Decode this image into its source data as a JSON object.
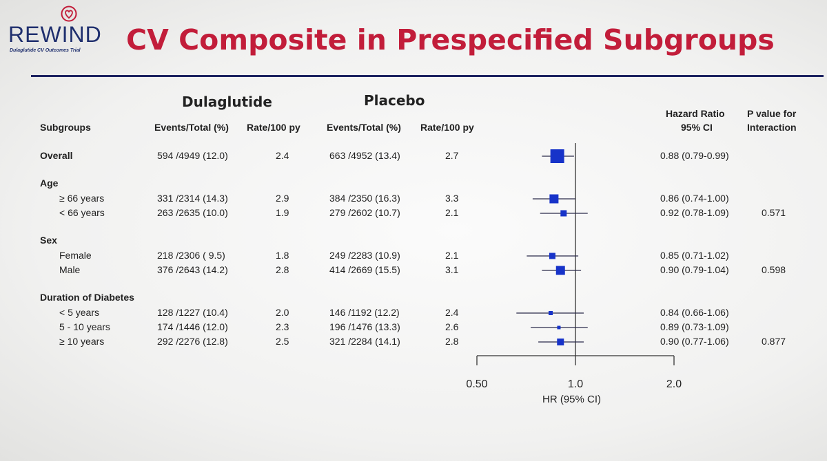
{
  "logo": {
    "name": "REWIND",
    "subtitle": "Dulaglutide CV Outcomes Trial"
  },
  "header": {
    "title": "CV Composite in Prespecified Subgroups"
  },
  "columns": {
    "subgroups": "Subgroups",
    "dula_group": "Dulaglutide",
    "plac_group": "Placebo",
    "events_total": "Events/Total (%)",
    "rate": "Rate/100 py",
    "hr_line1": "Hazard Ratio",
    "hr_line2": "95% CI",
    "p_line1": "P value for",
    "p_line2": "Interaction"
  },
  "rows": [
    {
      "label": "Overall",
      "bold": true,
      "d_events": "594 /4949 (12.0)",
      "d_rate": "2.4",
      "p_events": "663 /4952 (13.4)",
      "p_rate": "2.7",
      "hr_text": "0.88 (0.79-0.99)",
      "pval": "",
      "hr": 0.88,
      "lo": 0.79,
      "hi": 0.99,
      "size": 10
    },
    {
      "label": "Age",
      "bold": true,
      "header": true
    },
    {
      "label": "≥ 66 years",
      "d_events": "331 /2314 (14.3)",
      "d_rate": "2.9",
      "p_events": "384 /2350 (16.3)",
      "p_rate": "3.3",
      "hr_text": "0.86 (0.74-1.00)",
      "pval": "",
      "hr": 0.86,
      "lo": 0.74,
      "hi": 1.0,
      "size": 6.5
    },
    {
      "label": "< 66 years",
      "d_events": "263 /2635 (10.0)",
      "d_rate": "1.9",
      "p_events": "279 /2602 (10.7)",
      "p_rate": "2.1",
      "hr_text": "0.92 (0.78-1.09)",
      "pval": "0.571",
      "hr": 0.92,
      "lo": 0.78,
      "hi": 1.09,
      "size": 4.5
    },
    {
      "label": "Sex",
      "bold": true,
      "header": true
    },
    {
      "label": "Female",
      "d_events": "218 /2306 ( 9.5)",
      "d_rate": "1.8",
      "p_events": "249 /2283 (10.9)",
      "p_rate": "2.1",
      "hr_text": "0.85 (0.71-1.02)",
      "pval": "",
      "hr": 0.85,
      "lo": 0.71,
      "hi": 1.02,
      "size": 4.5
    },
    {
      "label": "Male",
      "d_events": "376 /2643 (14.2)",
      "d_rate": "2.8",
      "p_events": "414 /2669 (15.5)",
      "p_rate": "3.1",
      "hr_text": "0.90 (0.79-1.04)",
      "pval": "0.598",
      "hr": 0.9,
      "lo": 0.79,
      "hi": 1.04,
      "size": 6.5
    },
    {
      "label": "Duration of Diabetes",
      "bold": true,
      "header": true
    },
    {
      "label": "< 5 years",
      "d_events": "128 /1227 (10.4)",
      "d_rate": "2.0",
      "p_events": "146 /1192 (12.2)",
      "p_rate": "2.4",
      "hr_text": "0.84 (0.66-1.06)",
      "pval": "",
      "hr": 0.84,
      "lo": 0.66,
      "hi": 1.06,
      "size": 3
    },
    {
      "label": "5 - 10 years",
      "d_events": "174 /1446 (12.0)",
      "d_rate": "2.3",
      "p_events": "196 /1476 (13.3)",
      "p_rate": "2.6",
      "hr_text": "0.89 (0.73-1.09)",
      "pval": "",
      "hr": 0.89,
      "lo": 0.73,
      "hi": 1.09,
      "size": 2.5
    },
    {
      "label": "≥ 10 years",
      "d_events": "292 /2276 (12.8)",
      "d_rate": "2.5",
      "p_events": "321 /2284 (14.1)",
      "p_rate": "2.8",
      "hr_text": "0.90 (0.77-1.06)",
      "pval": "0.877",
      "hr": 0.9,
      "lo": 0.77,
      "hi": 1.06,
      "size": 5
    }
  ],
  "chart_data": {
    "type": "scatter",
    "title": "CV Composite in Prespecified Subgroups",
    "xlabel": "HR (95% CI)",
    "x_scale": "log",
    "xlim": [
      0.5,
      2.0
    ],
    "x_ticks": [
      "0.50",
      "1.0",
      "2.0"
    ],
    "reference_line": 1.0,
    "marker_color": "#1733c9",
    "categories": [
      "Overall",
      "≥ 66 years",
      "< 66 years",
      "Female",
      "Male",
      "< 5 years",
      "5 - 10 years",
      "≥ 10 years"
    ],
    "hr": [
      0.88,
      0.86,
      0.92,
      0.85,
      0.9,
      0.84,
      0.89,
      0.9
    ],
    "ci_low": [
      0.79,
      0.74,
      0.78,
      0.71,
      0.79,
      0.66,
      0.73,
      0.77
    ],
    "ci_high": [
      0.99,
      1.0,
      1.09,
      1.02,
      1.04,
      1.06,
      1.09,
      1.06
    ]
  }
}
